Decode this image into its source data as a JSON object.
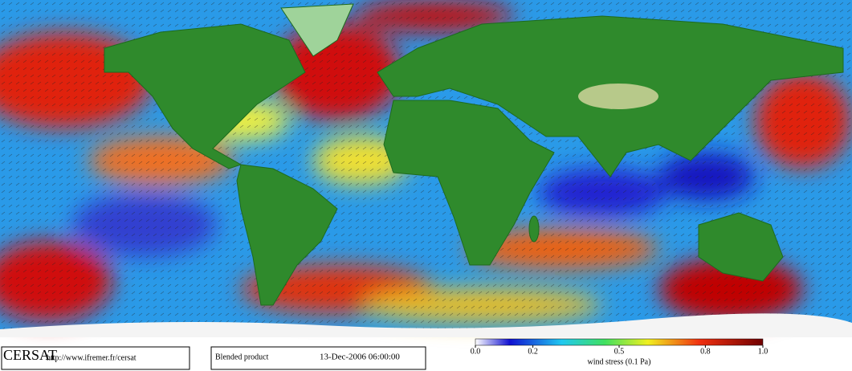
{
  "logo": "CERSAT",
  "url": "http://www.ifremer.fr/cersat",
  "product": "Blended product",
  "timestamp": "13-Dec-2006 06:00:00",
  "colorbar": {
    "label": "wind stress (0.1 Pa)",
    "lim": [
      0,
      1
    ],
    "ticks": [
      {
        "value": 0,
        "label": "0.0"
      },
      0.2,
      0.5,
      0.8,
      {
        "value": 1,
        "label": "1.0"
      }
    ]
  }
}
